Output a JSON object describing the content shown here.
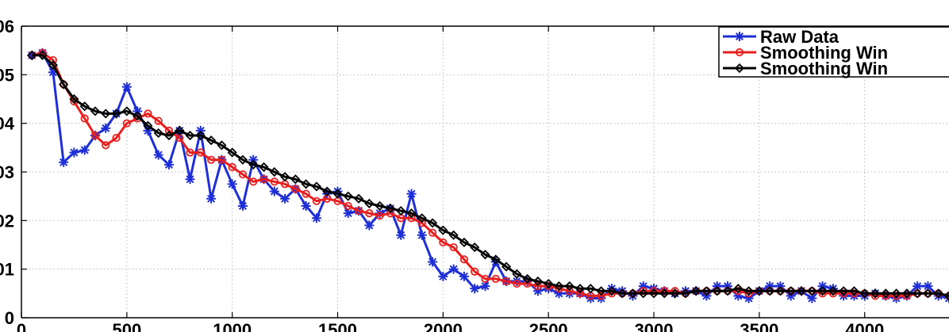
{
  "chart_data": {
    "type": "line",
    "title": "",
    "xlabel": "",
    "ylabel": "",
    "xlim": [
      0,
      4400
    ],
    "ylim": [
      0,
      0.06
    ],
    "grid": true,
    "legend_placement": "top-right",
    "x_ticks": [
      0,
      500,
      1000,
      1500,
      2000,
      2500,
      3000,
      3500,
      4000
    ],
    "x_tick_labels": [
      "0",
      "500",
      "1000",
      "1500",
      "2000",
      "2500",
      "3000",
      "3500",
      "4000"
    ],
    "y_ticks": [
      0,
      0.01,
      0.02,
      0.03,
      0.04,
      0.05,
      0.06
    ],
    "y_tick_labels": [
      "0",
      "01",
      "02",
      "03",
      "04",
      "05",
      "06"
    ],
    "legend": [
      "Raw Data",
      "Smoothing Win",
      "Smoothing Win"
    ],
    "series": [
      {
        "name": "Raw Data",
        "color": "#1f2fd6",
        "marker": "asterisk",
        "x": [
          50,
          100,
          150,
          200,
          250,
          300,
          350,
          400,
          450,
          500,
          550,
          600,
          650,
          700,
          750,
          800,
          850,
          900,
          950,
          1000,
          1050,
          1100,
          1150,
          1200,
          1250,
          1300,
          1350,
          1400,
          1450,
          1500,
          1550,
          1600,
          1650,
          1700,
          1750,
          1800,
          1850,
          1900,
          1950,
          2000,
          2050,
          2100,
          2150,
          2200,
          2250,
          2300,
          2350,
          2400,
          2450,
          2500,
          2550,
          2600,
          2650,
          2700,
          2750,
          2800,
          2850,
          2900,
          2950,
          3000,
          3050,
          3100,
          3150,
          3200,
          3250,
          3300,
          3350,
          3400,
          3450,
          3500,
          3550,
          3600,
          3650,
          3700,
          3750,
          3800,
          3850,
          3900,
          3950,
          4000,
          4050,
          4100,
          4150,
          4200,
          4250,
          4300,
          4350,
          4400
        ],
        "values": [
          0.054,
          0.0545,
          0.0505,
          0.032,
          0.034,
          0.0345,
          0.0375,
          0.039,
          0.042,
          0.0475,
          0.0425,
          0.0385,
          0.0335,
          0.0315,
          0.0385,
          0.0285,
          0.0385,
          0.0245,
          0.0325,
          0.0275,
          0.023,
          0.0325,
          0.0285,
          0.026,
          0.0245,
          0.0265,
          0.023,
          0.0205,
          0.0255,
          0.026,
          0.0215,
          0.022,
          0.019,
          0.0215,
          0.0225,
          0.017,
          0.0255,
          0.017,
          0.0115,
          0.0085,
          0.01,
          0.0085,
          0.006,
          0.0065,
          0.0115,
          0.0075,
          0.0075,
          0.0075,
          0.0055,
          0.006,
          0.005,
          0.005,
          0.005,
          0.004,
          0.004,
          0.006,
          0.0055,
          0.0045,
          0.0065,
          0.006,
          0.0055,
          0.005,
          0.0055,
          0.0055,
          0.0045,
          0.0065,
          0.0065,
          0.0045,
          0.004,
          0.0055,
          0.0065,
          0.0065,
          0.0045,
          0.0055,
          0.004,
          0.0065,
          0.006,
          0.0045,
          0.0045,
          0.0045,
          0.005,
          0.0045,
          0.004,
          0.0045,
          0.0065,
          0.0065,
          0.0045,
          0.004
        ]
      },
      {
        "name": "Smoothing Win",
        "color": "#e81f1f",
        "marker": "circle",
        "x": [
          50,
          100,
          150,
          200,
          250,
          300,
          350,
          400,
          450,
          500,
          550,
          600,
          650,
          700,
          750,
          800,
          850,
          900,
          950,
          1000,
          1050,
          1100,
          1150,
          1200,
          1250,
          1300,
          1350,
          1400,
          1450,
          1500,
          1550,
          1600,
          1650,
          1700,
          1750,
          1800,
          1850,
          1900,
          1950,
          2000,
          2050,
          2100,
          2150,
          2200,
          2250,
          2300,
          2350,
          2400,
          2450,
          2500,
          2550,
          2600,
          2650,
          2700,
          2750,
          2800,
          2850,
          2900,
          2950,
          3000,
          3050,
          3100,
          3150,
          3200,
          3250,
          3300,
          3350,
          3400,
          3450,
          3500,
          3550,
          3600,
          3650,
          3700,
          3750,
          3800,
          3850,
          3900,
          3950,
          4000,
          4050,
          4100,
          4150,
          4200,
          4250,
          4300,
          4350,
          4400
        ],
        "values": [
          0.054,
          0.0545,
          0.053,
          0.048,
          0.0445,
          0.041,
          0.0375,
          0.0355,
          0.037,
          0.04,
          0.041,
          0.042,
          0.0405,
          0.0385,
          0.037,
          0.034,
          0.034,
          0.0325,
          0.0325,
          0.031,
          0.0295,
          0.028,
          0.0285,
          0.028,
          0.0275,
          0.0265,
          0.0255,
          0.024,
          0.0245,
          0.024,
          0.023,
          0.022,
          0.0215,
          0.021,
          0.0215,
          0.0205,
          0.0205,
          0.0195,
          0.0175,
          0.0155,
          0.0145,
          0.012,
          0.0095,
          0.008,
          0.008,
          0.0075,
          0.007,
          0.007,
          0.0065,
          0.0065,
          0.006,
          0.0055,
          0.005,
          0.0045,
          0.0045,
          0.005,
          0.005,
          0.005,
          0.0055,
          0.0055,
          0.0055,
          0.0055,
          0.005,
          0.0055,
          0.0055,
          0.0055,
          0.0055,
          0.0055,
          0.005,
          0.0055,
          0.0055,
          0.0055,
          0.0055,
          0.0055,
          0.0055,
          0.005,
          0.005,
          0.005,
          0.005,
          0.005,
          0.0045,
          0.0045,
          0.0045,
          0.0045,
          0.005,
          0.005,
          0.005,
          0.0045
        ]
      },
      {
        "name": "Smoothing Win",
        "color": "#000000",
        "marker": "diamond",
        "x": [
          50,
          100,
          150,
          200,
          250,
          300,
          350,
          400,
          450,
          500,
          550,
          600,
          650,
          700,
          750,
          800,
          850,
          900,
          950,
          1000,
          1050,
          1100,
          1150,
          1200,
          1250,
          1300,
          1350,
          1400,
          1450,
          1500,
          1550,
          1600,
          1650,
          1700,
          1750,
          1800,
          1850,
          1900,
          1950,
          2000,
          2050,
          2100,
          2150,
          2200,
          2250,
          2300,
          2350,
          2400,
          2450,
          2500,
          2550,
          2600,
          2650,
          2700,
          2750,
          2800,
          2850,
          2900,
          2950,
          3000,
          3050,
          3100,
          3150,
          3200,
          3250,
          3300,
          3350,
          3400,
          3450,
          3500,
          3550,
          3600,
          3650,
          3700,
          3750,
          3800,
          3850,
          3900,
          3950,
          4000,
          4050,
          4100,
          4150,
          4200,
          4250,
          4300,
          4350,
          4400
        ],
        "values": [
          0.054,
          0.054,
          0.052,
          0.048,
          0.045,
          0.0435,
          0.0425,
          0.042,
          0.042,
          0.0425,
          0.0415,
          0.0395,
          0.038,
          0.0375,
          0.0385,
          0.0375,
          0.0375,
          0.0365,
          0.0355,
          0.034,
          0.0325,
          0.0315,
          0.031,
          0.03,
          0.029,
          0.0285,
          0.0275,
          0.027,
          0.026,
          0.0255,
          0.025,
          0.0245,
          0.0235,
          0.023,
          0.0225,
          0.022,
          0.0215,
          0.0205,
          0.0195,
          0.018,
          0.017,
          0.0155,
          0.0145,
          0.013,
          0.012,
          0.0105,
          0.009,
          0.008,
          0.0075,
          0.007,
          0.0065,
          0.0065,
          0.006,
          0.006,
          0.0055,
          0.0055,
          0.005,
          0.005,
          0.005,
          0.005,
          0.005,
          0.005,
          0.005,
          0.0055,
          0.0055,
          0.0055,
          0.0055,
          0.006,
          0.0055,
          0.0055,
          0.0055,
          0.0055,
          0.0055,
          0.0055,
          0.0055,
          0.0055,
          0.0055,
          0.0055,
          0.0055,
          0.005,
          0.005,
          0.005,
          0.005,
          0.005,
          0.005,
          0.005,
          0.005,
          0.0045
        ]
      }
    ]
  }
}
